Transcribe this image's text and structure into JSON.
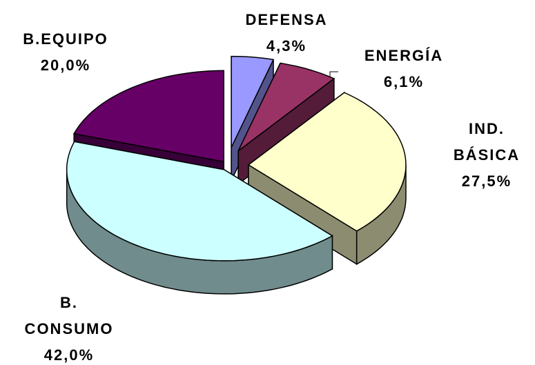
{
  "chart_data": {
    "type": "pie",
    "categories": [
      "DEFENSA",
      "ENERGÍA",
      "IND.\nBÁSICA",
      "B.\nCONSUMO",
      "B.EQUIPO"
    ],
    "values": [
      4.3,
      6.1,
      27.5,
      42.0,
      20.0
    ],
    "value_labels": [
      "4,3%",
      "6,1%",
      "27,5%",
      "42,0%",
      "20,0%"
    ],
    "colors": [
      "#9999ff",
      "#993366",
      "#ffffcc",
      "#ccffff",
      "#660066"
    ]
  }
}
